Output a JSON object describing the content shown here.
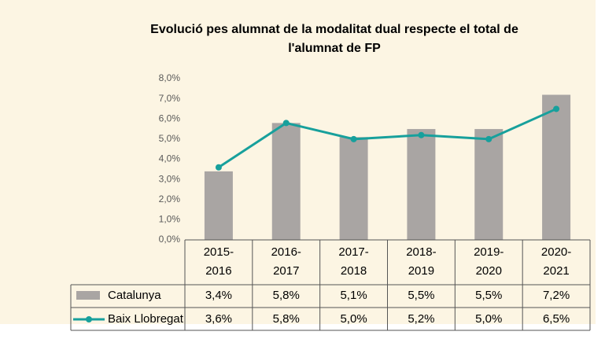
{
  "chart_data": {
    "type": "bar_line",
    "title": "Evolució pes alumnat de la modalitat dual respecte el total de l'alumnat de FP",
    "categories": [
      "2015-2016",
      "2016-2017",
      "2017-2018",
      "2018-2019",
      "2019-2020",
      "2020-2021"
    ],
    "series": [
      {
        "name": "Catalunya",
        "type": "bar",
        "color": "#a9a5a3",
        "values": [
          3.4,
          5.8,
          5.1,
          5.5,
          5.5,
          7.2
        ],
        "value_labels": [
          "3,4%",
          "5,8%",
          "5,1%",
          "5,5%",
          "5,5%",
          "7,2%"
        ]
      },
      {
        "name": "Baix Llobregat",
        "type": "line",
        "color": "#17a09c",
        "values": [
          3.6,
          5.8,
          5.0,
          5.2,
          5.0,
          6.5
        ],
        "value_labels": [
          "3,6%",
          "5,8%",
          "5,0%",
          "5,2%",
          "5,0%",
          "6,5%"
        ]
      }
    ],
    "ylim": [
      0,
      8
    ],
    "yticks": [
      {
        "value": 0,
        "label": "0,0%"
      },
      {
        "value": 1,
        "label": "1,0%"
      },
      {
        "value": 2,
        "label": "2,0%"
      },
      {
        "value": 3,
        "label": "3,0%"
      },
      {
        "value": 4,
        "label": "4,0%"
      },
      {
        "value": 5,
        "label": "5,0%"
      },
      {
        "value": 6,
        "label": "6,0%"
      },
      {
        "value": 7,
        "label": "7,0%"
      },
      {
        "value": 8,
        "label": "8,0%"
      }
    ],
    "grid": false
  }
}
